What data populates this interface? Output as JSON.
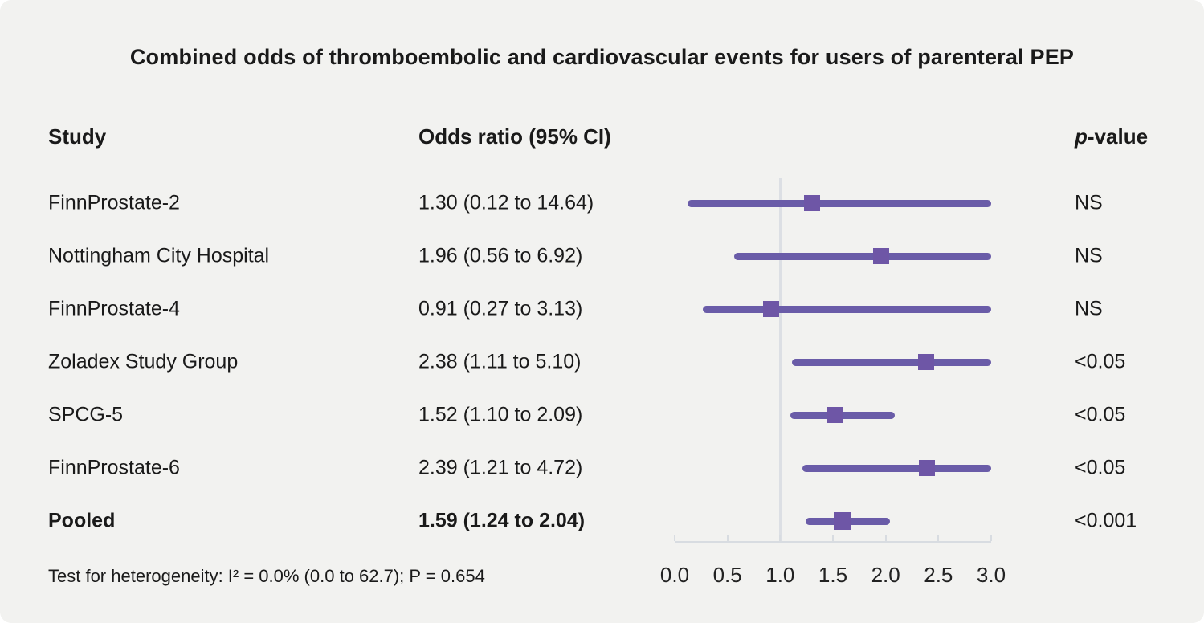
{
  "figure": {
    "title": "Combined odds of thromboembolic and cardiovascular events for users of parenteral PEP",
    "columns": {
      "study": "Study",
      "odds_ratio": "Odds ratio (95% CI)",
      "p_value_prefix": "p",
      "p_value_suffix": "-value"
    },
    "footer": "Test for heterogeneity: I² = 0.0% (0.0 to 62.7); P = 0.654"
  },
  "chart_data": {
    "type": "scatter",
    "variant": "forest-plot",
    "title": "Combined odds of thromboembolic and cardiovascular events for users of parenteral PEP",
    "xlabel": "",
    "ylabel": "",
    "x_axis": {
      "range": [
        0.0,
        3.0
      ],
      "tick_labels": [
        "0.0",
        "0.5",
        "1.0",
        "1.5",
        "2.0",
        "2.5",
        "3.0"
      ],
      "tick_values": [
        0.0,
        0.5,
        1.0,
        1.5,
        2.0,
        2.5,
        3.0
      ],
      "reference_line": 1.0,
      "ci_clipped_at": 3.0
    },
    "rows": [
      {
        "study": "FinnProstate-2",
        "label": "1.30 (0.12 to 14.64)",
        "or": 1.3,
        "low": 0.12,
        "high": 14.64,
        "p": "NS",
        "bold": false
      },
      {
        "study": "Nottingham City Hospital",
        "label": "1.96 (0.56 to 6.92)",
        "or": 1.96,
        "low": 0.56,
        "high": 6.92,
        "p": "NS",
        "bold": false
      },
      {
        "study": "FinnProstate-4",
        "label": "0.91 (0.27 to 3.13)",
        "or": 0.91,
        "low": 0.27,
        "high": 3.13,
        "p": "NS",
        "bold": false
      },
      {
        "study": "Zoladex Study Group",
        "label": "2.38 (1.11 to 5.10)",
        "or": 2.38,
        "low": 1.11,
        "high": 5.1,
        "p": "<0.05",
        "bold": false
      },
      {
        "study": "SPCG-5",
        "label": "1.52 (1.10 to 2.09)",
        "or": 1.52,
        "low": 1.1,
        "high": 2.09,
        "p": "<0.05",
        "bold": false
      },
      {
        "study": "FinnProstate-6",
        "label": "2.39 (1.21 to 4.72)",
        "or": 2.39,
        "low": 1.21,
        "high": 4.72,
        "p": "<0.05",
        "bold": false
      },
      {
        "study": "Pooled",
        "label": "1.59 (1.24 to 2.04)",
        "or": 1.59,
        "low": 1.24,
        "high": 2.04,
        "p": "<0.001",
        "bold": true
      }
    ],
    "colors": {
      "ci_line": "#6a5ca8",
      "marker": "#6e56a6",
      "axis": "#d8dce1",
      "reference_line": "#dcdfe4",
      "background": "#f2f2f0",
      "text": "#1a1a1a"
    },
    "legend": null,
    "grid": false
  }
}
